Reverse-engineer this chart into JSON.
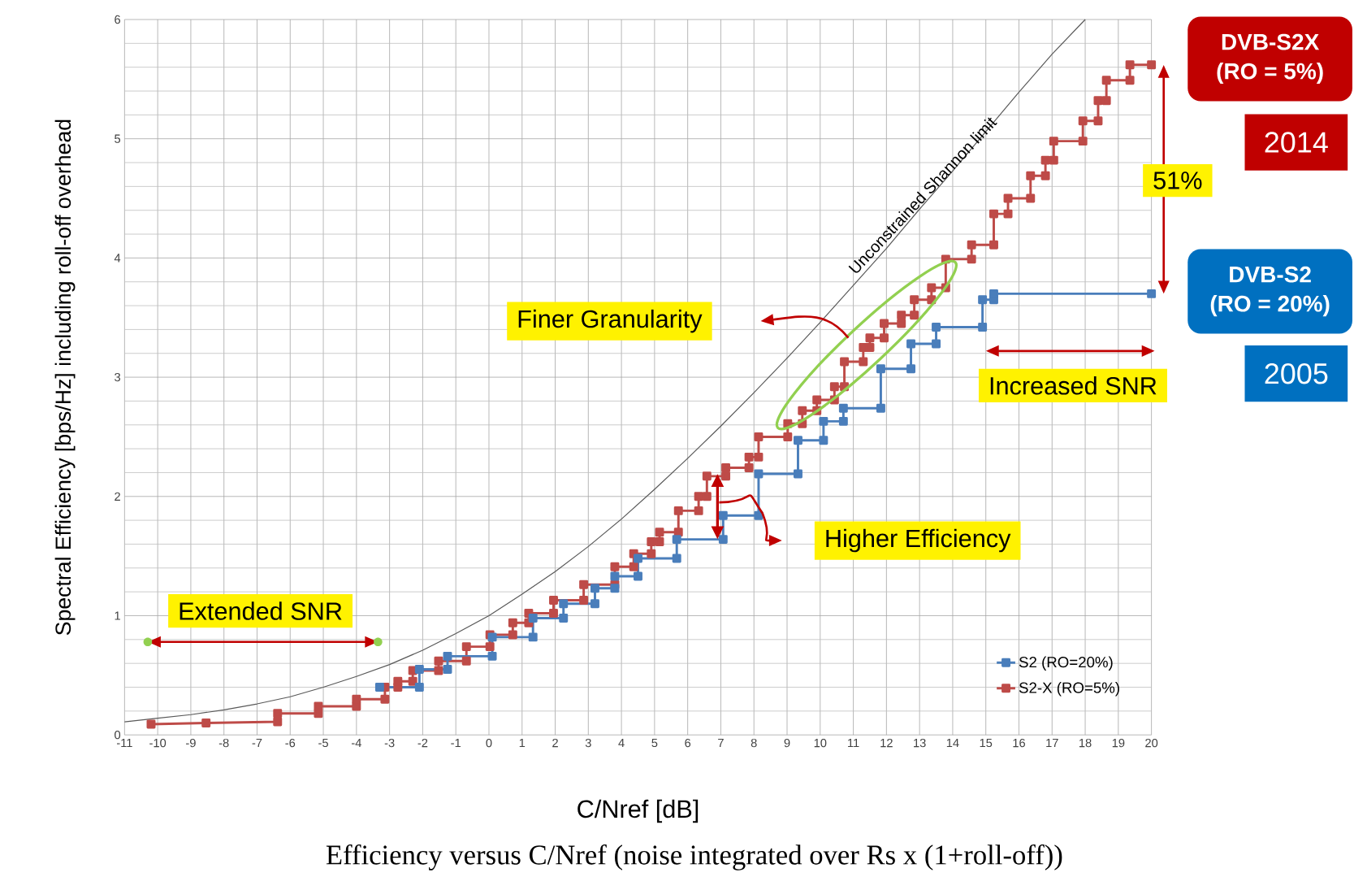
{
  "chart_data": {
    "type": "line",
    "xlabel": "C/Nref [dB]",
    "ylabel": "Spectral Efficiency [bps/Hz] including roll-off overhead",
    "xlim": [
      -11,
      20
    ],
    "ylim": [
      0,
      6
    ],
    "xticks": [
      -11,
      -10,
      -9,
      -8,
      -7,
      -6,
      -5,
      -4,
      -3,
      -2,
      -1,
      0,
      1,
      2,
      3,
      4,
      5,
      6,
      7,
      8,
      9,
      10,
      11,
      12,
      13,
      14,
      15,
      16,
      17,
      18,
      19,
      20
    ],
    "yticks": [
      0,
      1,
      2,
      3,
      4,
      5,
      6
    ],
    "grid": true,
    "legend": "bottom right",
    "marker": "square",
    "line_style": "solid",
    "series": [
      {
        "name": "S2 (RO=20%)",
        "color": "#4a7ebb",
        "x": [
          -3.3,
          -2.1,
          -2.1,
          -1.25,
          -1.25,
          0.1,
          0.1,
          1.33,
          1.33,
          2.25,
          2.25,
          3.2,
          3.2,
          3.8,
          3.8,
          4.5,
          4.5,
          5.67,
          5.67,
          7.07,
          7.07,
          8.14,
          8.14,
          9.33,
          9.33,
          10.1,
          10.1,
          10.7,
          10.7,
          11.83,
          11.83,
          12.74,
          12.74,
          13.5,
          13.5,
          14.9,
          14.9,
          15.24,
          15.24,
          20
        ],
        "values": [
          0.4,
          0.4,
          0.55,
          0.55,
          0.66,
          0.66,
          0.82,
          0.82,
          0.98,
          0.98,
          1.1,
          1.1,
          1.23,
          1.23,
          1.33,
          1.33,
          1.48,
          1.48,
          1.64,
          1.64,
          1.84,
          1.84,
          2.19,
          2.19,
          2.47,
          2.47,
          2.63,
          2.63,
          2.74,
          2.74,
          3.07,
          3.07,
          3.28,
          3.28,
          3.42,
          3.42,
          3.65,
          3.65,
          3.7,
          3.7
        ]
      },
      {
        "name": "S2-X (RO=5%)",
        "color": "#be4b48",
        "x": [
          -10.2,
          -8.54,
          -6.38,
          -6.38,
          -5.15,
          -5.15,
          -4.0,
          -4.0,
          -3.14,
          -3.14,
          -2.75,
          -2.75,
          -2.3,
          -2.3,
          -1.52,
          -1.52,
          -0.68,
          -0.68,
          0.03,
          0.03,
          0.72,
          0.72,
          1.2,
          1.2,
          1.95,
          1.95,
          2.86,
          2.86,
          3.8,
          3.8,
          4.37,
          4.37,
          4.9,
          4.9,
          5.15,
          5.15,
          5.72,
          5.72,
          6.33,
          6.33,
          6.58,
          6.58,
          7.15,
          7.15,
          7.85,
          7.85,
          8.14,
          8.14,
          9.02,
          9.02,
          9.46,
          9.46,
          9.9,
          9.9,
          10.43,
          10.43,
          10.73,
          10.73,
          11.3,
          11.3,
          11.5,
          11.5,
          11.93,
          11.93,
          12.45,
          12.45,
          12.84,
          12.84,
          13.36,
          13.36,
          13.79,
          13.79,
          14.57,
          14.57,
          15.24,
          15.24,
          15.67,
          15.67,
          16.35,
          16.35,
          16.8,
          16.8,
          17.05,
          17.05,
          17.93,
          17.93,
          18.39,
          18.39,
          18.64,
          18.64,
          19.35,
          19.35,
          20
        ],
        "values": [
          0.09,
          0.1,
          0.11,
          0.18,
          0.18,
          0.24,
          0.24,
          0.3,
          0.3,
          0.4,
          0.4,
          0.45,
          0.45,
          0.54,
          0.54,
          0.62,
          0.62,
          0.74,
          0.74,
          0.84,
          0.84,
          0.94,
          0.94,
          1.02,
          1.02,
          1.13,
          1.13,
          1.26,
          1.26,
          1.41,
          1.41,
          1.52,
          1.52,
          1.62,
          1.62,
          1.7,
          1.7,
          1.88,
          1.88,
          2.0,
          2.0,
          2.17,
          2.17,
          2.24,
          2.24,
          2.33,
          2.33,
          2.5,
          2.5,
          2.61,
          2.61,
          2.72,
          2.72,
          2.81,
          2.81,
          2.92,
          2.92,
          3.13,
          3.13,
          3.25,
          3.25,
          3.33,
          3.33,
          3.45,
          3.45,
          3.52,
          3.52,
          3.65,
          3.65,
          3.75,
          3.75,
          3.99,
          3.99,
          4.11,
          4.11,
          4.37,
          4.37,
          4.5,
          4.5,
          4.69,
          4.69,
          4.82,
          4.82,
          4.98,
          4.98,
          5.15,
          5.15,
          5.32,
          5.32,
          5.49,
          5.49,
          5.62,
          5.62
        ]
      },
      {
        "name": "Unconstrained Shannon limit",
        "color": "#595959",
        "marker": "none",
        "x": [
          -11,
          -10,
          -9,
          -8,
          -7,
          -6,
          -5,
          -4,
          -3,
          -2,
          -1,
          0,
          1,
          2,
          3,
          4,
          5,
          6,
          7,
          8,
          9,
          10,
          11,
          12,
          13,
          14,
          15,
          16,
          17,
          18
        ],
        "values": [
          0.11,
          0.14,
          0.17,
          0.21,
          0.26,
          0.32,
          0.4,
          0.49,
          0.59,
          0.71,
          0.85,
          1.0,
          1.18,
          1.37,
          1.58,
          1.81,
          2.06,
          2.32,
          2.59,
          2.87,
          3.16,
          3.46,
          3.77,
          4.08,
          4.41,
          4.73,
          5.06,
          5.39,
          5.71,
          6.0
        ]
      }
    ],
    "annotations": [
      "Extended SNR",
      "Finer Granularity",
      "Higher Efficiency",
      "Increased SNR",
      "51%",
      "DVB-S2X",
      "(RO = 5%)",
      "2014",
      "DVB-S2",
      "(RO = 20%)",
      "2005",
      "Efficiency versus C/Nref (noise integrated over Rs x (1+roll-off))"
    ]
  }
}
